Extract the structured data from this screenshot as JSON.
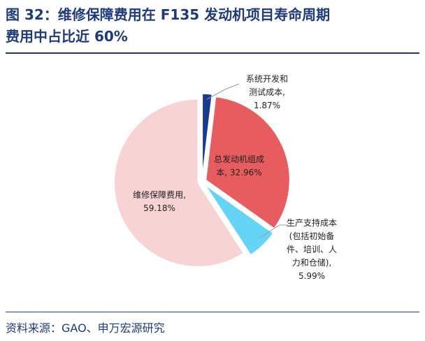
{
  "header": {
    "title_line1": "图 32：维修保障费用在 F135 发动机项目寿命周期",
    "title_line2": "费用中占比近 60%"
  },
  "footer": {
    "source": "资料来源：GAO、申万宏源研究"
  },
  "chart_data": {
    "type": "pie",
    "title": "",
    "slices": [
      {
        "name": "系统开发和测试成本",
        "value": 1.87,
        "color": "#1a3a8c",
        "label_lines": [
          "系统开发和",
          "测试成本,",
          "1.87%"
        ]
      },
      {
        "name": "总发动机组成本",
        "value": 32.96,
        "color": "#e65c5f",
        "label_lines": [
          "总发动机组成",
          "本, 32.96%"
        ]
      },
      {
        "name": "生产支持成本(包括初始备件、培训、人力和仓储)",
        "value": 5.99,
        "color": "#66d4f7",
        "label_lines": [
          "生产支持成本",
          "(包括初始备",
          "件、培训、人",
          "力和仓储),",
          "5.99%"
        ]
      },
      {
        "name": "维修保障费用",
        "value": 59.18,
        "color": "#f8d3d3",
        "label_lines": [
          "维修保障费用,",
          "59.18%"
        ]
      }
    ]
  }
}
